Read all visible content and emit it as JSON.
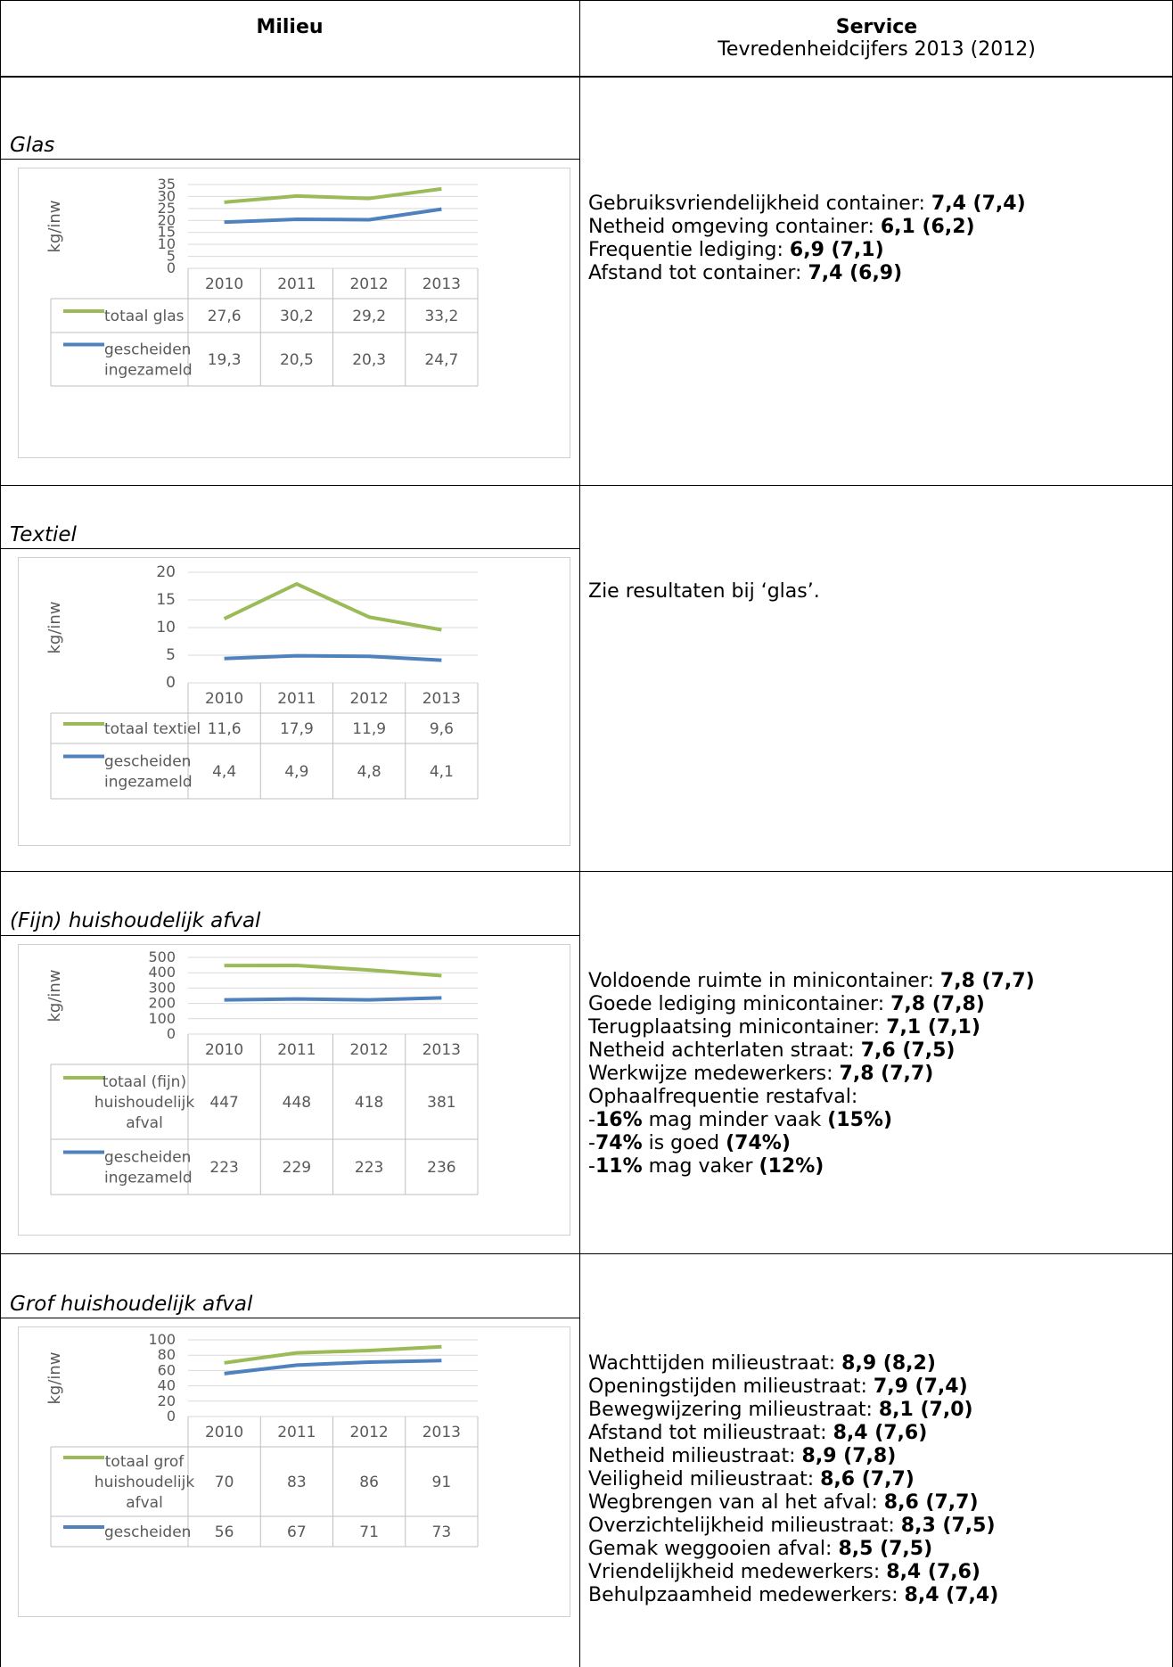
{
  "header": {
    "left_title": "Milieu",
    "right_title": "Service",
    "right_subtitle": "Tevredenheidcijfers 2013 (2012)"
  },
  "sections": [
    {
      "title": "Glas",
      "service": [
        {
          "label": "Gebruiksvriendelijkheid container: ",
          "value": "7,4 (7,4)"
        },
        {
          "label": "Netheid omgeving container: ",
          "value": "6,1 (6,2)"
        },
        {
          "label": "Frequentie lediging: ",
          "value": "6,9 (7,1)"
        },
        {
          "label": "Afstand tot container: ",
          "value": "7,4 (6,9)"
        }
      ]
    },
    {
      "title": "Textiel",
      "service": [
        {
          "label": "Zie resultaten bij ‘glas’.",
          "value": ""
        }
      ]
    },
    {
      "title": "(Fijn) huishoudelijk afval",
      "service": [
        {
          "label": "Voldoende ruimte in minicontainer: ",
          "value": "7,8 (7,7)"
        },
        {
          "label": "Goede lediging minicontainer: ",
          "value": "7,8 (7,8)"
        },
        {
          "label": "Terugplaatsing minicontainer: ",
          "value": "7,1 (7,1)"
        },
        {
          "label": "Netheid achterlaten straat: ",
          "value": "7,6 (7,5)"
        },
        {
          "label": "Werkwijze medewerkers: ",
          "value": "7,8 (7,7)"
        },
        {
          "label": "Ophaalfrequentie restafval:",
          "value": ""
        },
        {
          "pre": "-",
          "bold1": "16%",
          "mid": " mag minder vaak ",
          "bold2": "(15%)"
        },
        {
          "pre": "-",
          "bold1": "74%",
          "mid": " is goed ",
          "bold2": "(74%)"
        },
        {
          "pre": "-",
          "bold1": "11%",
          "mid": " mag vaker ",
          "bold2": "(12%)"
        }
      ]
    },
    {
      "title": "Grof huishoudelijk afval",
      "service": [
        {
          "label": "Wachttijden milieustraat: ",
          "value": "8,9 (8,2)"
        },
        {
          "label": "Openingstijden milieustraat: ",
          "value": "7,9 (7,4)"
        },
        {
          "label": "Bewegwijzering milieustraat: ",
          "value": "8,1 (7,0)"
        },
        {
          "label": "Afstand tot milieustraat: ",
          "value": "8,4 (7,6)"
        },
        {
          "label": "Netheid milieustraat: ",
          "value": "8,9 (7,8)"
        },
        {
          "label": "Veiligheid milieustraat: ",
          "value": "8,6 (7,7)"
        },
        {
          "label": "Wegbrengen van al het afval: ",
          "value": "8,6 (7,7)"
        },
        {
          "label": "Overzichtelijkheid milieustraat: ",
          "value": "8,3 (7,5)"
        },
        {
          "label": "Gemak weggooien afval: ",
          "value": "8,5 (7,5)"
        },
        {
          "label": "Vriendelijkheid medewerkers: ",
          "value": "8,4 (7,6)"
        },
        {
          "label": "Behulpzaamheid medewerkers: ",
          "value": "8,4 (7,4)"
        }
      ]
    }
  ],
  "chart_data": [
    {
      "type": "line",
      "title": "",
      "ylabel": "kg/inw",
      "categories": [
        "2010",
        "2011",
        "2012",
        "2013"
      ],
      "yticks": [
        "35",
        "30",
        "25",
        "20",
        "15",
        "10",
        "5",
        "0"
      ],
      "ylim": [
        0,
        35
      ],
      "grid": true,
      "series": [
        {
          "name": "totaal glas",
          "color": "#9bbb59",
          "values": [
            27.6,
            30.2,
            29.2,
            33.2
          ],
          "labels": [
            "27,6",
            "30,2",
            "29,2",
            "33,2"
          ]
        },
        {
          "name": "gescheiden ingezameld",
          "color": "#4f81bd",
          "values": [
            19.3,
            20.5,
            20.3,
            24.7
          ],
          "labels": [
            "19,3",
            "20,5",
            "20,3",
            "24,7"
          ]
        }
      ]
    },
    {
      "type": "line",
      "title": "",
      "ylabel": "kg/inw",
      "categories": [
        "2010",
        "2011",
        "2012",
        "2013"
      ],
      "yticks": [
        "20",
        "15",
        "10",
        "5",
        "0"
      ],
      "ylim": [
        0,
        20
      ],
      "grid": true,
      "series": [
        {
          "name": "totaal textiel",
          "color": "#9bbb59",
          "values": [
            11.6,
            17.9,
            11.9,
            9.6
          ],
          "labels": [
            "11,6",
            "17,9",
            "11,9",
            "9,6"
          ]
        },
        {
          "name": "gescheiden ingezameld",
          "color": "#4f81bd",
          "values": [
            4.4,
            4.9,
            4.8,
            4.1
          ],
          "labels": [
            "4,4",
            "4,9",
            "4,8",
            "4,1"
          ]
        }
      ]
    },
    {
      "type": "line",
      "title": "",
      "ylabel": "kg/inw",
      "categories": [
        "2010",
        "2011",
        "2012",
        "2013"
      ],
      "yticks": [
        "500",
        "400",
        "300",
        "200",
        "100",
        "0"
      ],
      "ylim": [
        0,
        500
      ],
      "grid": true,
      "series": [
        {
          "name": "totaal (fijn) huishoudelijk afval",
          "color": "#9bbb59",
          "values": [
            447,
            448,
            418,
            381
          ],
          "labels": [
            "447",
            "448",
            "418",
            "381"
          ]
        },
        {
          "name": "gescheiden ingezameld",
          "color": "#4f81bd",
          "values": [
            223,
            229,
            223,
            236
          ],
          "labels": [
            "223",
            "229",
            "223",
            "236"
          ]
        }
      ]
    },
    {
      "type": "line",
      "title": "",
      "ylabel": "kg/inw",
      "categories": [
        "2010",
        "2011",
        "2012",
        "2013"
      ],
      "yticks": [
        "100",
        "80",
        "60",
        "40",
        "20",
        "0"
      ],
      "ylim": [
        0,
        100
      ],
      "grid": true,
      "series": [
        {
          "name": "totaal grof huishoudelijk afval",
          "color": "#9bbb59",
          "values": [
            70,
            83,
            86,
            91
          ],
          "labels": [
            "70",
            "83",
            "86",
            "91"
          ]
        },
        {
          "name": "gescheiden",
          "color": "#4f81bd",
          "values": [
            56,
            67,
            71,
            73
          ],
          "labels": [
            "56",
            "67",
            "71",
            "73"
          ]
        }
      ]
    }
  ]
}
